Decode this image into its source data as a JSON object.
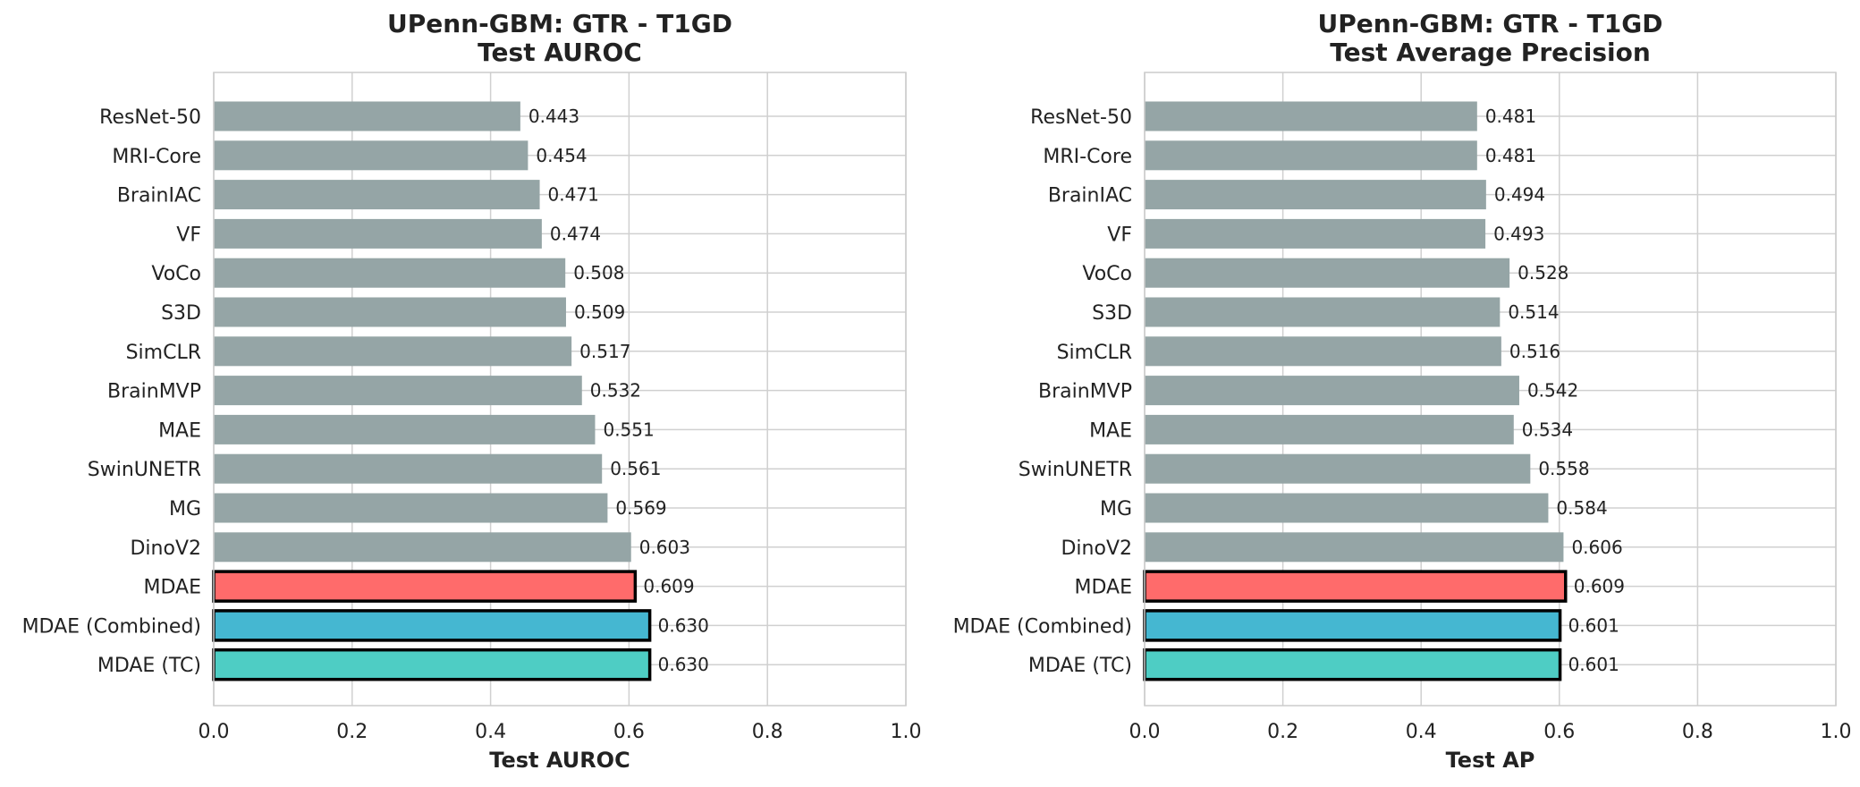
{
  "chart_data": [
    {
      "type": "bar",
      "orientation": "horizontal",
      "title_line1": "UPenn-GBM: GTR - T1GD",
      "title_line2": "Test AUROC",
      "xlabel": "Test AUROC",
      "ylabel": "",
      "xlim": [
        0.0,
        1.0
      ],
      "xticks": [
        "0.0",
        "0.2",
        "0.4",
        "0.6",
        "0.8",
        "1.0"
      ],
      "grid": true,
      "categories": [
        "ResNet-50",
        "MRI-Core",
        "BrainIAC",
        "VF",
        "VoCo",
        "S3D",
        "SimCLR",
        "BrainMVP",
        "MAE",
        "SwinUNETR",
        "MG",
        "DinoV2",
        "MDAE",
        "MDAE (Combined)",
        "MDAE (TC)"
      ],
      "values": [
        0.443,
        0.454,
        0.471,
        0.474,
        0.508,
        0.509,
        0.517,
        0.532,
        0.551,
        0.561,
        0.569,
        0.603,
        0.609,
        0.63,
        0.63
      ],
      "value_labels": [
        "0.443",
        "0.454",
        "0.471",
        "0.474",
        "0.508",
        "0.509",
        "0.517",
        "0.532",
        "0.551",
        "0.561",
        "0.569",
        "0.603",
        "0.609",
        "0.630",
        "0.630"
      ],
      "colors": [
        "#95a5a6",
        "#95a5a6",
        "#95a5a6",
        "#95a5a6",
        "#95a5a6",
        "#95a5a6",
        "#95a5a6",
        "#95a5a6",
        "#95a5a6",
        "#95a5a6",
        "#95a5a6",
        "#95a5a6",
        "#ff6b6b",
        "#45b7d1",
        "#4ecdc4"
      ],
      "highlighted": [
        false,
        false,
        false,
        false,
        false,
        false,
        false,
        false,
        false,
        false,
        false,
        false,
        true,
        true,
        true
      ]
    },
    {
      "type": "bar",
      "orientation": "horizontal",
      "title_line1": "UPenn-GBM: GTR - T1GD",
      "title_line2": "Test Average Precision",
      "xlabel": "Test AP",
      "ylabel": "",
      "xlim": [
        0.0,
        1.0
      ],
      "xticks": [
        "0.0",
        "0.2",
        "0.4",
        "0.6",
        "0.8",
        "1.0"
      ],
      "grid": true,
      "categories": [
        "ResNet-50",
        "MRI-Core",
        "BrainIAC",
        "VF",
        "VoCo",
        "S3D",
        "SimCLR",
        "BrainMVP",
        "MAE",
        "SwinUNETR",
        "MG",
        "DinoV2",
        "MDAE",
        "MDAE (Combined)",
        "MDAE (TC)"
      ],
      "values": [
        0.481,
        0.481,
        0.494,
        0.493,
        0.528,
        0.514,
        0.516,
        0.542,
        0.534,
        0.558,
        0.584,
        0.606,
        0.609,
        0.601,
        0.601
      ],
      "value_labels": [
        "0.481",
        "0.481",
        "0.494",
        "0.493",
        "0.528",
        "0.514",
        "0.516",
        "0.542",
        "0.534",
        "0.558",
        "0.584",
        "0.606",
        "0.609",
        "0.601",
        "0.601"
      ],
      "colors": [
        "#95a5a6",
        "#95a5a6",
        "#95a5a6",
        "#95a5a6",
        "#95a5a6",
        "#95a5a6",
        "#95a5a6",
        "#95a5a6",
        "#95a5a6",
        "#95a5a6",
        "#95a5a6",
        "#95a5a6",
        "#ff6b6b",
        "#45b7d1",
        "#4ecdc4"
      ],
      "highlighted": [
        false,
        false,
        false,
        false,
        false,
        false,
        false,
        false,
        false,
        false,
        false,
        false,
        true,
        true,
        true
      ]
    }
  ]
}
